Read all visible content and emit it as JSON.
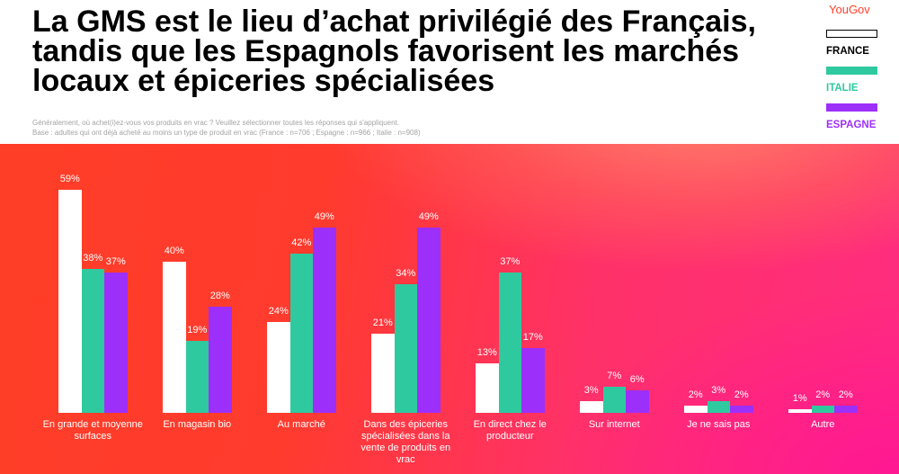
{
  "brand": "YouGov",
  "brand_color": "#ff412c",
  "chart_data": {
    "type": "bar",
    "title": "La GMS est le lieu d’achat privilégié des Français, tandis que les Espagnols favorisent les marchés locaux et épiceries spécialisées",
    "subtitle": [
      "Généralement, où achet(i)ez-vous vos produits en vrac ? Veuillez sélectionner toutes les réponses qui s'appliquent.",
      "Base : adultes qui ont déjà acheté au moins un type de produit en vrac (France : n=706 ; Espagne : n=966 ; Italie : n=908)"
    ],
    "categories": [
      "En grande et moyenne surfaces",
      "En magasin bio",
      "Au marché",
      "Dans des épiceries spécialisées dans la vente de produits en vrac",
      "En direct chez le producteur",
      "Sur internet",
      "Je ne sais pas",
      "Autre"
    ],
    "series": [
      {
        "name": "FRANCE",
        "color": "#ffffff",
        "label_color": "#000000",
        "values": [
          59,
          40,
          24,
          21,
          13,
          3,
          2,
          1
        ]
      },
      {
        "name": "ITALIE",
        "color": "#2fc9a0",
        "label_color": "#2fc9a0",
        "values": [
          38,
          19,
          42,
          34,
          37,
          7,
          3,
          2
        ]
      },
      {
        "name": "ESPAGNE",
        "color": "#9d2ffb",
        "label_color": "#9d2ffb",
        "values": [
          37,
          28,
          49,
          49,
          17,
          6,
          2,
          2
        ]
      }
    ],
    "unit": "%",
    "data_labels": true,
    "grid": false,
    "legend_position": "top-right"
  }
}
